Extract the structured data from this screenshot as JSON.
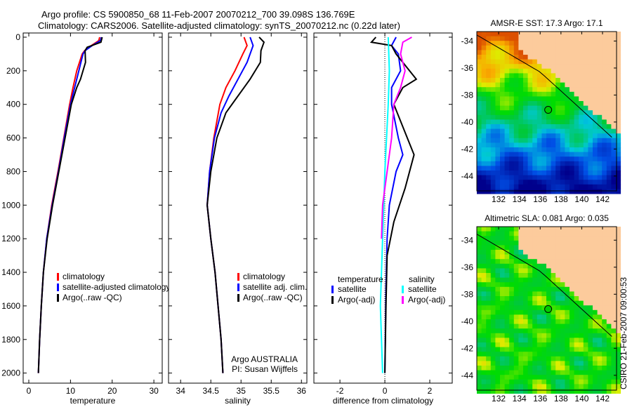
{
  "title_line1": "Argo profile: CS 5900850_68 11-Feb-2007 20070212_700 39.098S 136.769E",
  "title_line2": "Climatology: CARS2006. Satellite-adjusted climatology: synTS_20070212.nc (0.22d later)",
  "side_label": "CSIRO 21-Feb-2007 09:00:53",
  "colors": {
    "clim": "#ff0000",
    "sat": "#0000ff",
    "argo": "#000000",
    "sal_sat": "#00ffff",
    "sal_argo": "#ff00ff"
  },
  "chart_data": [
    {
      "type": "line",
      "id": "temp",
      "xlabel": "temperature",
      "xlim": [
        -1.35,
        32
      ],
      "ylim": [
        -25,
        2060
      ],
      "xticks": [
        0,
        10,
        20,
        30
      ],
      "yticks": [
        0,
        200,
        400,
        600,
        800,
        1000,
        1200,
        1400,
        1600,
        1800,
        2000
      ],
      "legend": [
        "climatology",
        "satellite-adjusted climatology",
        "Argo(..raw -QC)"
      ],
      "series": [
        {
          "name": "climatology",
          "color": "#ff0000",
          "depth": [
            0,
            20,
            50,
            80,
            100,
            200,
            300,
            400,
            600,
            800,
            1000,
            1200,
            1400,
            1600,
            1800,
            2000
          ],
          "values": [
            17,
            16.8,
            15,
            13.4,
            12.8,
            11.5,
            10.6,
            9.8,
            8.4,
            7,
            5.5,
            4.3,
            3.5,
            3,
            2.6,
            2.3
          ]
        },
        {
          "name": "satellite-adjusted climatology",
          "color": "#0000ff",
          "depth": [
            0,
            20,
            50,
            80,
            100,
            200,
            300,
            400,
            600,
            800,
            1000,
            1200,
            1400,
            1600,
            1800,
            2000
          ],
          "values": [
            17.4,
            17.2,
            15.2,
            13.5,
            13,
            12,
            11,
            10,
            8.5,
            7.1,
            5.6,
            4.3,
            3.5,
            3,
            2.6,
            2.3
          ]
        },
        {
          "name": "Argo(..raw -QC)",
          "color": "#000000",
          "depth": [
            0,
            30,
            60,
            80,
            150,
            250,
            300,
            400,
            600,
            800,
            1000,
            1200,
            1400,
            1600,
            1800,
            2000
          ],
          "values": [
            17.6,
            17.3,
            14,
            13.5,
            13.6,
            12.4,
            11.5,
            10.2,
            8.7,
            7.2,
            5.7,
            4.4,
            3.5,
            3,
            2.6,
            2.3
          ]
        }
      ]
    },
    {
      "type": "line",
      "id": "sal",
      "xlabel": "salinity",
      "xlim": [
        33.8,
        36.09
      ],
      "ylim": [
        -25,
        2060
      ],
      "xticks": [
        34,
        34.5,
        35,
        35.5,
        36
      ],
      "legend": [
        "climatology",
        "satellite adj. clim.",
        "Argo(..raw -QC)"
      ],
      "annotation": [
        "Argo AUSTRALIA",
        "PI: Susan Wijffels"
      ],
      "series": [
        {
          "name": "climatology",
          "color": "#ff0000",
          "depth": [
            0,
            50,
            100,
            200,
            300,
            400,
            600,
            800,
            1000,
            1200,
            1400,
            1600,
            1800,
            2000
          ],
          "values": [
            35.05,
            35.1,
            35.03,
            34.9,
            34.75,
            34.65,
            34.55,
            34.48,
            34.44,
            34.5,
            34.57,
            34.62,
            34.67,
            34.7
          ]
        },
        {
          "name": "satellite adj. clim.",
          "color": "#0000ff",
          "depth": [
            0,
            50,
            150,
            250,
            350,
            450,
            600,
            800,
            1000,
            1200,
            1400,
            1600,
            1800,
            2000
          ],
          "values": [
            35.15,
            35.2,
            35.1,
            34.95,
            34.8,
            34.67,
            34.56,
            34.48,
            34.44,
            34.5,
            34.57,
            34.62,
            34.67,
            34.7
          ]
        },
        {
          "name": "Argo(..raw -QC)",
          "color": "#000000",
          "depth": [
            0,
            30,
            80,
            150,
            250,
            350,
            450,
            600,
            800,
            1000,
            1200,
            1400,
            1600,
            1800,
            2000
          ],
          "values": [
            35.3,
            35.38,
            35.33,
            35.32,
            35.15,
            34.95,
            34.75,
            34.6,
            34.5,
            34.44,
            34.5,
            34.57,
            34.62,
            34.67,
            34.7
          ]
        }
      ]
    },
    {
      "type": "line",
      "id": "diff",
      "xlabel": "difference from climatology",
      "xlim": [
        -3.16,
        3.0
      ],
      "ylim": [
        -25,
        2060
      ],
      "xticks": [
        -2,
        0,
        2
      ],
      "legend_headers": [
        "temperature",
        "salinity"
      ],
      "legend": [
        "satellite",
        "Argo(-adj)",
        "satellite",
        "Argo(-adj)"
      ],
      "series": [
        {
          "name": "temperature satellite",
          "color": "#0000ff",
          "depth": [
            0,
            50,
            100,
            200,
            300,
            400,
            600,
            700,
            800,
            1000,
            1200,
            1500,
            2000
          ],
          "values": [
            0.5,
            0.3,
            0.6,
            0.7,
            0.3,
            0.3,
            0.6,
            0.8,
            0.5,
            0.2,
            0.1,
            0.05,
            0
          ]
        },
        {
          "name": "temperature Argo(-adj)",
          "color": "#000000",
          "depth": [
            0,
            30,
            50,
            100,
            200,
            250,
            300,
            400,
            600,
            700,
            900,
            1100,
            1300,
            1600,
            2000
          ],
          "values": [
            -0.4,
            -0.6,
            0.3,
            0.5,
            1.1,
            1.4,
            0.8,
            0.4,
            1.0,
            1.3,
            0.9,
            0.4,
            0.1,
            0.05,
            0
          ]
        },
        {
          "name": "salinity satellite",
          "color": "#00ffff",
          "depth": [
            0,
            200,
            400,
            800,
            1200,
            1600,
            2000
          ],
          "values": [
            0.15,
            0.2,
            0.15,
            0,
            -0.1,
            -0.2,
            -0.1
          ]
        },
        {
          "name": "salinity Argo(-adj)",
          "color": "#ff00ff",
          "depth": [
            0,
            30,
            100,
            200,
            300,
            400,
            600,
            800,
            1000,
            1200
          ],
          "values": [
            1.2,
            0.8,
            0.7,
            0.9,
            0.7,
            0.4,
            0.3,
            0.1,
            -0.1,
            -0.15
          ]
        }
      ]
    },
    {
      "type": "heatmap",
      "id": "sst",
      "title": "AMSR-E SST: 17.3 Argo: 17.1",
      "xticks": [
        132,
        134,
        136,
        138,
        140,
        142
      ],
      "yticks": [
        -34,
        -36,
        -38,
        -40,
        -42,
        -44
      ],
      "lon": [
        129.9,
        143.35
      ],
      "lat": [
        -45.1,
        -33.3
      ],
      "float": [
        136.769,
        -39.098
      ]
    },
    {
      "type": "heatmap",
      "id": "sla",
      "title": "Altimetric SLA: 0.081 Argo: 0.035",
      "xticks": [
        132,
        134,
        136,
        138,
        140,
        142
      ],
      "yticks": [
        -34,
        -36,
        -38,
        -40,
        -42,
        -44
      ],
      "lon": [
        129.9,
        143.35
      ],
      "lat": [
        -45.1,
        -33.0
      ],
      "float": [
        136.769,
        -39.098
      ]
    }
  ]
}
